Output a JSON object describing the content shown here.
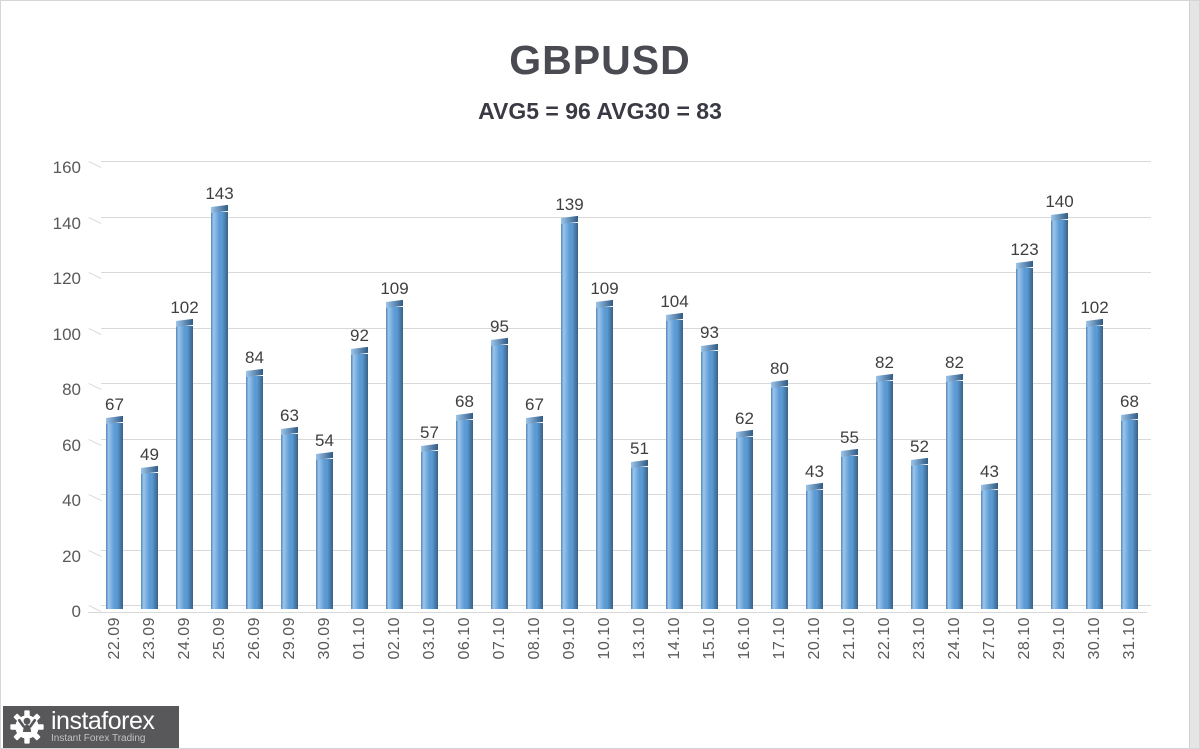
{
  "chart_data": {
    "type": "bar",
    "title": "GBPUSD",
    "subtitle": "AVG5 = 96 AVG30 = 83",
    "avg5": 96,
    "avg30": 83,
    "categories": [
      "22.09",
      "23.09",
      "24.09",
      "25.09",
      "26.09",
      "29.09",
      "30.09",
      "01.10",
      "02.10",
      "03.10",
      "06.10",
      "07.10",
      "08.10",
      "09.10",
      "10.10",
      "13.10",
      "14.10",
      "15.10",
      "16.10",
      "17.10",
      "20.10",
      "21.10",
      "22.10",
      "23.10",
      "24.10",
      "27.10",
      "28.10",
      "29.10",
      "30.10",
      "31.10"
    ],
    "values": [
      67,
      49,
      102,
      143,
      84,
      63,
      54,
      92,
      109,
      57,
      68,
      95,
      67,
      139,
      109,
      51,
      104,
      93,
      62,
      80,
      43,
      55,
      82,
      52,
      82,
      43,
      123,
      140,
      102,
      68
    ],
    "xlabel": "",
    "ylabel": "",
    "ylim": [
      0,
      160
    ],
    "yticks": [
      0,
      20,
      40,
      60,
      80,
      100,
      120,
      140,
      160
    ],
    "grid": true,
    "legend": "none",
    "colors": {
      "bar_fill": "#5b9bd5",
      "bar_highlight": "#9cc5ea",
      "bar_shadow": "#3a6186",
      "bar_edge_left": "#5286b8",
      "bar_cap": "#2f5a84",
      "gridline": "#d9d9d9",
      "axis_text": "#595959",
      "value_label": "#3f3f3f",
      "title": "#4a4a52",
      "subtitle": "#3a3a44"
    }
  },
  "watermark": {
    "brand": "instaforex",
    "tagline": "Instant Forex Trading",
    "icon": "gear-person-icon",
    "bar_color": "#58585a",
    "brand_color": "#ffffff",
    "tagline_color": "#c2c2c2"
  }
}
